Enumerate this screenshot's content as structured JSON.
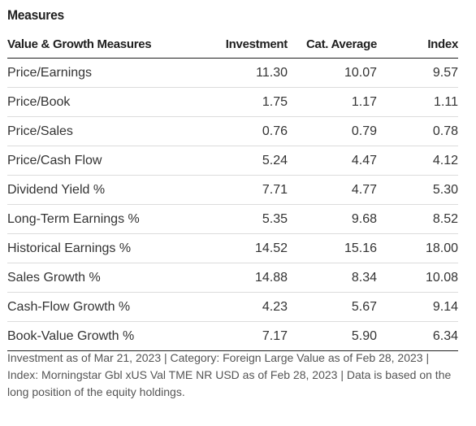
{
  "section": {
    "title": "Measures"
  },
  "table": {
    "headers": {
      "name": "Value & Growth Measures",
      "investment": "Investment",
      "cat_average": "Cat. Average",
      "index": "Index"
    },
    "rows": [
      {
        "name": "Price/Earnings",
        "investment": "11.30",
        "cat_average": "10.07",
        "index": "9.57"
      },
      {
        "name": "Price/Book",
        "investment": "1.75",
        "cat_average": "1.17",
        "index": "1.11"
      },
      {
        "name": "Price/Sales",
        "investment": "0.76",
        "cat_average": "0.79",
        "index": "0.78"
      },
      {
        "name": "Price/Cash Flow",
        "investment": "5.24",
        "cat_average": "4.47",
        "index": "4.12"
      },
      {
        "name": "Dividend Yield %",
        "investment": "7.71",
        "cat_average": "4.77",
        "index": "5.30"
      },
      {
        "name": "Long-Term Earnings %",
        "investment": "5.35",
        "cat_average": "9.68",
        "index": "8.52"
      },
      {
        "name": "Historical Earnings %",
        "investment": "14.52",
        "cat_average": "15.16",
        "index": "18.00"
      },
      {
        "name": "Sales Growth %",
        "investment": "14.88",
        "cat_average": "8.34",
        "index": "10.08"
      },
      {
        "name": "Cash-Flow Growth %",
        "investment": "4.23",
        "cat_average": "5.67",
        "index": "9.14"
      },
      {
        "name": "Book-Value Growth %",
        "investment": "7.17",
        "cat_average": "5.90",
        "index": "6.34"
      }
    ]
  },
  "footnote": "Investment as of Mar 21, 2023 | Category: Foreign Large Value as of Feb 28, 2023 | Index: Morningstar Gbl xUS Val TME NR USD as of Feb 28, 2023 | Data is based on the long position of the equity holdings."
}
